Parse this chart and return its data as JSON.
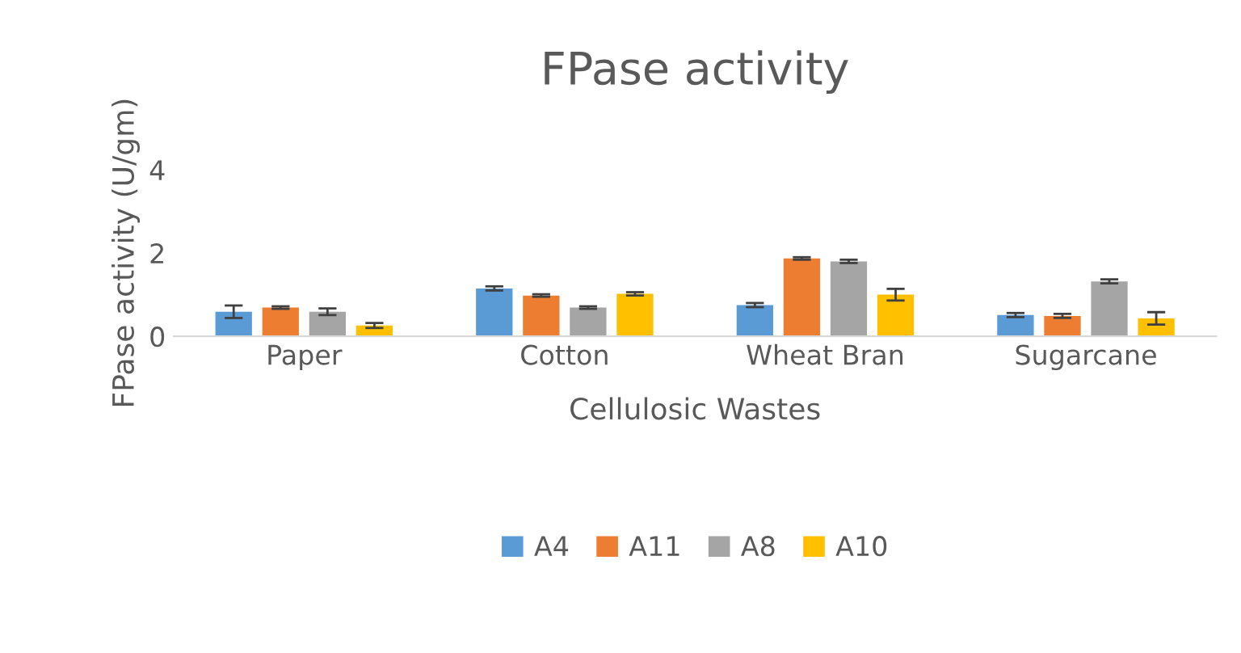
{
  "chart_data": {
    "type": "bar",
    "title": "FPase activity",
    "xlabel": "Cellulosic Wastes",
    "ylabel": "FPase activity (U/gm)",
    "categories": [
      "Paper",
      "Cotton",
      "Wheat Bran",
      "Sugarcane"
    ],
    "series": [
      {
        "name": "A4",
        "color": "#5b9bd5",
        "values": [
          0.59,
          1.15,
          0.75,
          0.51
        ],
        "errors": [
          0.15,
          0.05,
          0.05,
          0.05
        ]
      },
      {
        "name": "A11",
        "color": "#ed7d31",
        "values": [
          0.69,
          0.98,
          1.87,
          0.49
        ],
        "errors": [
          0.03,
          0.03,
          0.03,
          0.05
        ]
      },
      {
        "name": "A8",
        "color": "#a5a5a5",
        "values": [
          0.59,
          0.69,
          1.8,
          1.32
        ],
        "errors": [
          0.08,
          0.03,
          0.04,
          0.05
        ]
      },
      {
        "name": "A10",
        "color": "#ffc000",
        "values": [
          0.26,
          1.02,
          1.0,
          0.43
        ],
        "errors": [
          0.06,
          0.04,
          0.14,
          0.15
        ]
      }
    ],
    "ylim": [
      0,
      4
    ],
    "yticks": [
      0,
      2,
      4
    ],
    "grid": false,
    "legend": "bottom"
  }
}
